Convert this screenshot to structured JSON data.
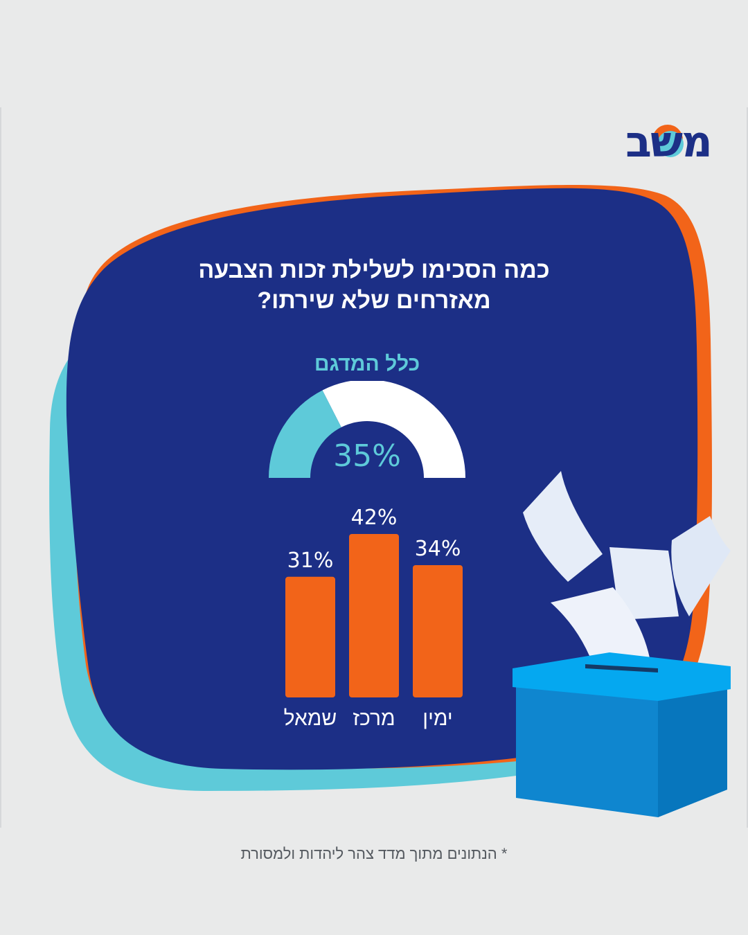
{
  "title": {
    "line1": "כמה הסכימו לשלילת זכות הצבעה",
    "line2": "מאזרחים שלא שירתו?"
  },
  "logo": {
    "text": "משב"
  },
  "colors": {
    "background": "#e9eaea",
    "navy": "#1c2f86",
    "orange": "#f26419",
    "teal": "#5ecad9",
    "white": "#ffffff"
  },
  "chart_data": [
    {
      "type": "pie",
      "subtype": "half-donut-gauge",
      "title": "כלל המדגם",
      "value": 35,
      "max": 100,
      "value_label": "35%"
    },
    {
      "type": "bar",
      "categories": [
        "שמאל",
        "מרכז",
        "ימין"
      ],
      "values": [
        31,
        42,
        34
      ],
      "value_labels": [
        "31%",
        "42%",
        "34%"
      ],
      "ylim": [
        0,
        42
      ],
      "xlabel": "",
      "ylabel": ""
    }
  ],
  "footnote": "* הנתונים מתוך מדד צהר ליהדות ולמסורת"
}
